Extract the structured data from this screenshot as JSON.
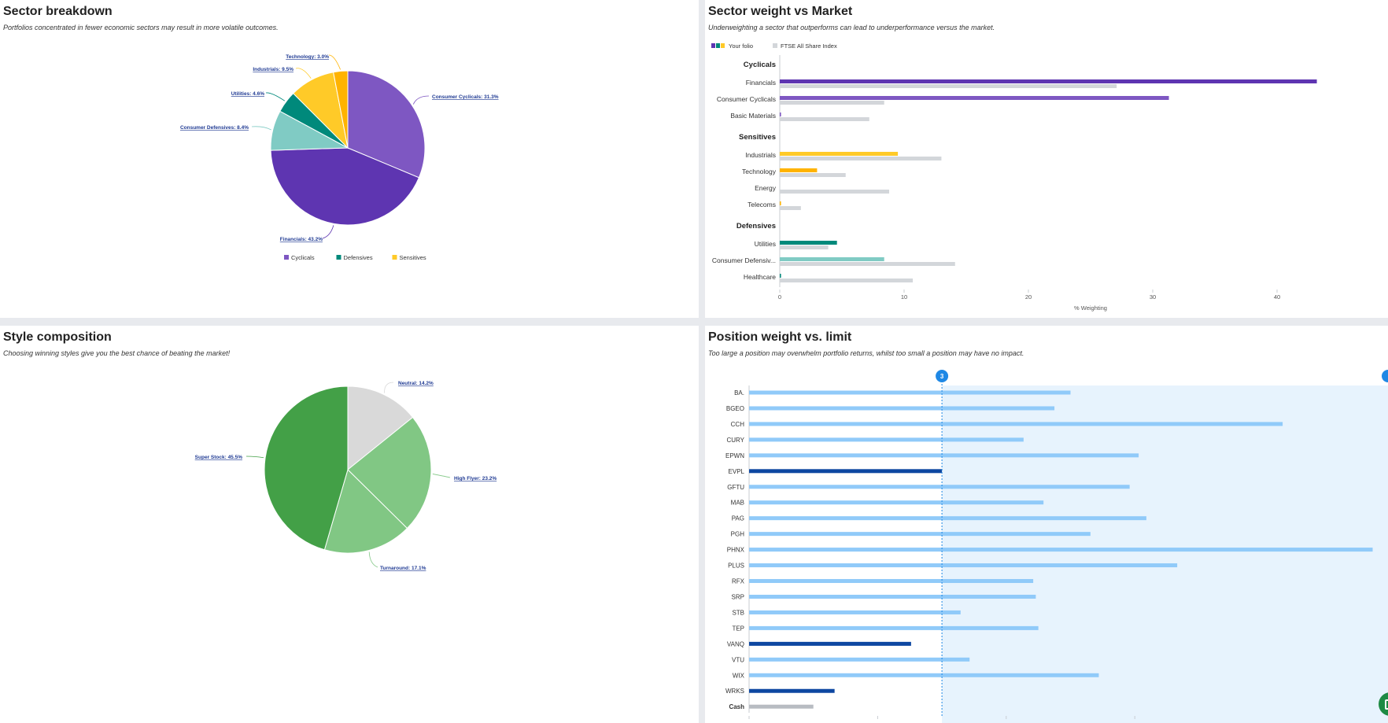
{
  "panels": {
    "sector_breakdown": {
      "title": "Sector breakdown",
      "subtitle": "Portfolios concentrated in fewer economic sectors may result in more volatile outcomes."
    },
    "sector_weight": {
      "title": "Sector weight vs Market",
      "subtitle": "Underweighting a sector that outperforms can lead to underperformance versus the market."
    },
    "style_composition": {
      "title": "Style composition",
      "subtitle": "Choosing winning styles give you the best chance of beating the market!"
    },
    "position_weight": {
      "title": "Position weight vs. limit",
      "subtitle": "Too large a position may overwhelm portfolio returns, whilst too small a position may have no impact."
    }
  },
  "chart_data": [
    {
      "type": "pie",
      "id": "sector_breakdown",
      "slices": [
        {
          "label": "Consumer Cyclicals: 31.3%",
          "value": 31.3,
          "color": "#7e57c2"
        },
        {
          "label": "Financials: 43.2%",
          "value": 43.2,
          "color": "#5e35b1"
        },
        {
          "label": "Consumer Defensives: 8.4%",
          "value": 8.4,
          "color": "#80cbc4"
        },
        {
          "label": "Utilities: 4.6%",
          "value": 4.6,
          "color": "#00897b"
        },
        {
          "label": "Industrials: 9.5%",
          "value": 9.5,
          "color": "#ffca28"
        },
        {
          "label": "Technology: 3.0%",
          "value": 3.0,
          "color": "#ffb300"
        }
      ],
      "legend": [
        {
          "label": "Cyclicals",
          "color": "#7e57c2"
        },
        {
          "label": "Defensives",
          "color": "#00897b"
        },
        {
          "label": "Sensitives",
          "color": "#ffca28"
        }
      ],
      "legend_position": "bottom"
    },
    {
      "type": "bar",
      "id": "sector_weight",
      "orientation": "horizontal",
      "legend": [
        {
          "label": "Your folio",
          "colors": [
            "#5e35b1",
            "#00897b",
            "#ffca28"
          ]
        },
        {
          "label": "FTSE All Share Index",
          "colors": [
            "#d3d6da"
          ]
        }
      ],
      "legend_position": "top-left",
      "groups": [
        {
          "name": "Cyclicals",
          "rows": [
            {
              "label": "Financials",
              "folio": 43.2,
              "market": 27.1,
              "color": "#5e35b1"
            },
            {
              "label": "Consumer Cyclicals",
              "folio": 31.3,
              "market": 8.4,
              "color": "#7e57c2"
            },
            {
              "label": "Basic Materials",
              "folio": 0.1,
              "market": 7.2,
              "color": "#7e57c2"
            }
          ]
        },
        {
          "name": "Sensitives",
          "rows": [
            {
              "label": "Industrials",
              "folio": 9.5,
              "market": 13.0,
              "color": "#ffca28"
            },
            {
              "label": "Technology",
              "folio": 3.0,
              "market": 5.3,
              "color": "#ffb300"
            },
            {
              "label": "Energy",
              "folio": 0,
              "market": 8.8,
              "color": "#ffca28"
            },
            {
              "label": "Telecoms",
              "folio": 0.1,
              "market": 1.7,
              "color": "#ffb300"
            }
          ]
        },
        {
          "name": "Defensives",
          "rows": [
            {
              "label": "Utilities",
              "folio": 4.6,
              "market": 3.9,
              "color": "#00897b"
            },
            {
              "label": "Consumer Defensiv...",
              "folio": 8.4,
              "market": 14.1,
              "color": "#80cbc4"
            },
            {
              "label": "Healthcare",
              "folio": 0.1,
              "market": 10.7,
              "color": "#00897b"
            }
          ]
        }
      ],
      "xticks": [
        0,
        10,
        20,
        30,
        40
      ],
      "xlim": [
        0,
        49
      ],
      "xlabel": "% Weighting"
    },
    {
      "type": "pie",
      "id": "style_composition",
      "slices": [
        {
          "label": "Neutral: 14.2%",
          "value": 14.2,
          "color": "#d9d9d9"
        },
        {
          "label": "High Flyer: 23.2%",
          "value": 23.2,
          "color": "#81c784"
        },
        {
          "label": "Turnaround: 17.1%",
          "value": 17.1,
          "color": "#81c784"
        },
        {
          "label": "Super Stock: 45.5%",
          "value": 45.5,
          "color": "#43a047"
        }
      ]
    },
    {
      "type": "bar",
      "id": "position_weight",
      "orientation": "horizontal",
      "limit_marker": "3",
      "limit_value": 3,
      "xticks": [
        "0",
        "2",
        "4",
        "6"
      ],
      "xlim": [
        0,
        9.8
      ],
      "rows": [
        {
          "label": "BA.",
          "value": 5.0,
          "under": false
        },
        {
          "label": "BGEO",
          "value": 4.75,
          "under": false
        },
        {
          "label": "CCH",
          "value": 8.3,
          "under": false
        },
        {
          "label": "CURY",
          "value": 4.27,
          "under": false
        },
        {
          "label": "EPWN",
          "value": 6.06,
          "under": false
        },
        {
          "label": "EVPL",
          "value": 3.0,
          "under": true
        },
        {
          "label": "GFTU",
          "value": 5.92,
          "under": false
        },
        {
          "label": "MAB",
          "value": 4.58,
          "under": false
        },
        {
          "label": "PAG",
          "value": 6.18,
          "under": false
        },
        {
          "label": "PGH",
          "value": 5.31,
          "under": false
        },
        {
          "label": "PHNX",
          "value": 9.7,
          "under": false
        },
        {
          "label": "PLUS",
          "value": 6.66,
          "under": false
        },
        {
          "label": "RFX",
          "value": 4.42,
          "under": false
        },
        {
          "label": "SRP",
          "value": 4.46,
          "under": false
        },
        {
          "label": "STB",
          "value": 3.29,
          "under": false
        },
        {
          "label": "TEP",
          "value": 4.5,
          "under": false
        },
        {
          "label": "VANQ",
          "value": 2.52,
          "under": true
        },
        {
          "label": "VTU",
          "value": 3.43,
          "under": false
        },
        {
          "label": "WIX",
          "value": 5.44,
          "under": false
        },
        {
          "label": "WRKS",
          "value": 1.33,
          "under": true
        },
        {
          "label": "Cash",
          "value": 1.0,
          "under": false,
          "cash": true
        }
      ]
    }
  ]
}
